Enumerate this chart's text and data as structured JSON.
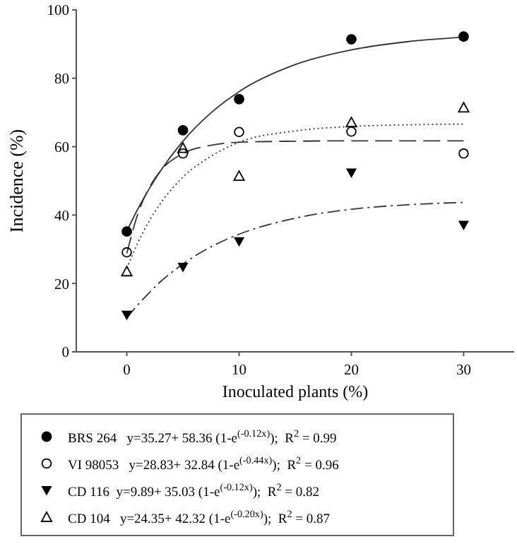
{
  "chart_data": {
    "type": "scatter",
    "xlabel": "Inoculated plants (%)",
    "ylabel": "Incidence (%)",
    "xlim": [
      -4.5,
      34.5
    ],
    "xticks": [
      0,
      10,
      20,
      30
    ],
    "ylim": [
      0,
      100
    ],
    "yticks": [
      0,
      20,
      40,
      60,
      80,
      100
    ],
    "grid": false,
    "legend": "bottom",
    "series": [
      {
        "name": "BRS 264   y=35.27+ 58.36 (1-e$^{(-0.12x)}$);  R$^{2}$ = 0.99",
        "marker": "circle",
        "color": "#000000",
        "x": [
          0,
          5,
          10,
          20,
          30
        ],
        "values": [
          35.2,
          64.8,
          73.9,
          91.4,
          92.2
        ]
      },
      {
        "name": "VI 98053   y=28.83+ 32.84 (1-e$^{(-0.44x)}$);  R$^{2}$ = 0.96",
        "marker": "circle-open",
        "color": "#000000",
        "x": [
          0,
          5,
          10,
          20,
          30
        ],
        "values": [
          29.1,
          58,
          64.3,
          64.4,
          58
        ]
      },
      {
        "name": "CD 116  y=9.89+ 35.03 (1-e$^{(-0.12x)}$);  R$^{2}$ = 0.82",
        "marker": "triangle-down",
        "color": "#000000",
        "x": [
          0,
          5,
          10,
          20,
          30
        ],
        "values": [
          10.8,
          24.8,
          32.3,
          52.4,
          37.1
        ]
      },
      {
        "name": "CD 104   y=24.35+ 42.32 (1-e$^{(-0.20x)}$);  R$^{2}$ = 0.87",
        "marker": "triangle-open",
        "color": "#000000",
        "x": [
          0,
          5,
          10,
          20,
          30
        ],
        "values": [
          23.5,
          59.6,
          51.4,
          67.1,
          71.4
        ]
      },
      {
        "type": "line",
        "marker": "none",
        "line_style": "solid",
        "color": "#333333",
        "x": [
          0,
          1,
          2,
          3,
          5,
          7.5,
          10,
          15,
          20,
          25,
          30
        ],
        "values": [
          35.3,
          41.9,
          47.7,
          52.9,
          61.6,
          69.9,
          76.1,
          84.0,
          88.3,
          90.7,
          92.0
        ]
      },
      {
        "type": "line",
        "marker": "none",
        "line_style": "dashed",
        "color": "#333333",
        "x": [
          0,
          1,
          2,
          3,
          5,
          7.5,
          10,
          15,
          20,
          25,
          30
        ],
        "values": [
          28.8,
          40.5,
          48.0,
          52.9,
          58.0,
          60.4,
          61.3,
          61.6,
          61.7,
          61.7,
          61.7
        ]
      },
      {
        "type": "line",
        "marker": "none",
        "line_style": "dashdot",
        "color": "#333333",
        "x": [
          0,
          1,
          2,
          3,
          5,
          7.5,
          10,
          15,
          20,
          25,
          30
        ],
        "values": [
          9.9,
          13.8,
          17.3,
          20.5,
          25.7,
          30.7,
          34.4,
          39.1,
          41.7,
          43.0,
          43.7
        ]
      },
      {
        "type": "line",
        "marker": "none",
        "line_style": "dotted",
        "color": "#333333",
        "x": [
          0,
          1,
          2,
          3,
          5,
          7.5,
          10,
          15,
          20,
          25,
          30
        ],
        "values": [
          24.4,
          32.0,
          38.3,
          43.4,
          51.1,
          57.2,
          61.3,
          64.6,
          65.9,
          66.4,
          66.6
        ]
      }
    ]
  }
}
